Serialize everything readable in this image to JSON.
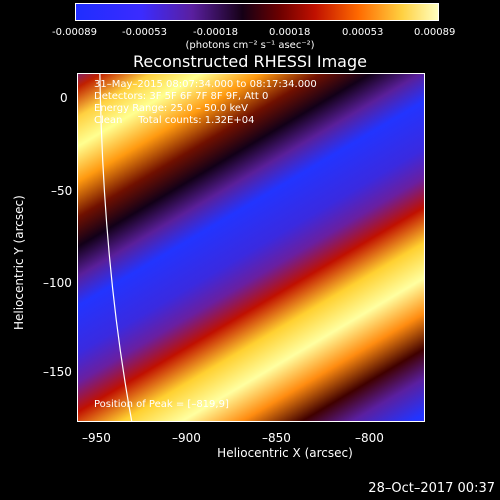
{
  "colorbar": {
    "ticks": [
      "-0.00089",
      "-0.00053",
      "-0.00018",
      "0.00018",
      "0.00053",
      "0.00089"
    ],
    "unit": "(photons cm⁻² s⁻¹ asec⁻²)"
  },
  "title": "Reconstructed RHESSI Image",
  "annotations": {
    "time_range": "31–May–2015 08:07:34.000 to 08:17:34.000",
    "detectors": "Detectors: 3F 5F 6F 7F 8F 9F, Att 0",
    "energy_range": "Energy Range: 25.0 – 50.0 keV",
    "method_counts": "Clean     Total counts: 1.32E+04",
    "peak_position": "Position of Peak = [–819,9]"
  },
  "axes": {
    "xlabel": "Heliocentric X (arcsec)",
    "ylabel": "Heliocentric Y (arcsec)",
    "xticks": [
      "–950",
      "–900",
      "–850",
      "–800"
    ],
    "yticks": [
      "0",
      "–50",
      "–100",
      "–150"
    ]
  },
  "timestamp": "28–Oct–2017 00:37"
}
